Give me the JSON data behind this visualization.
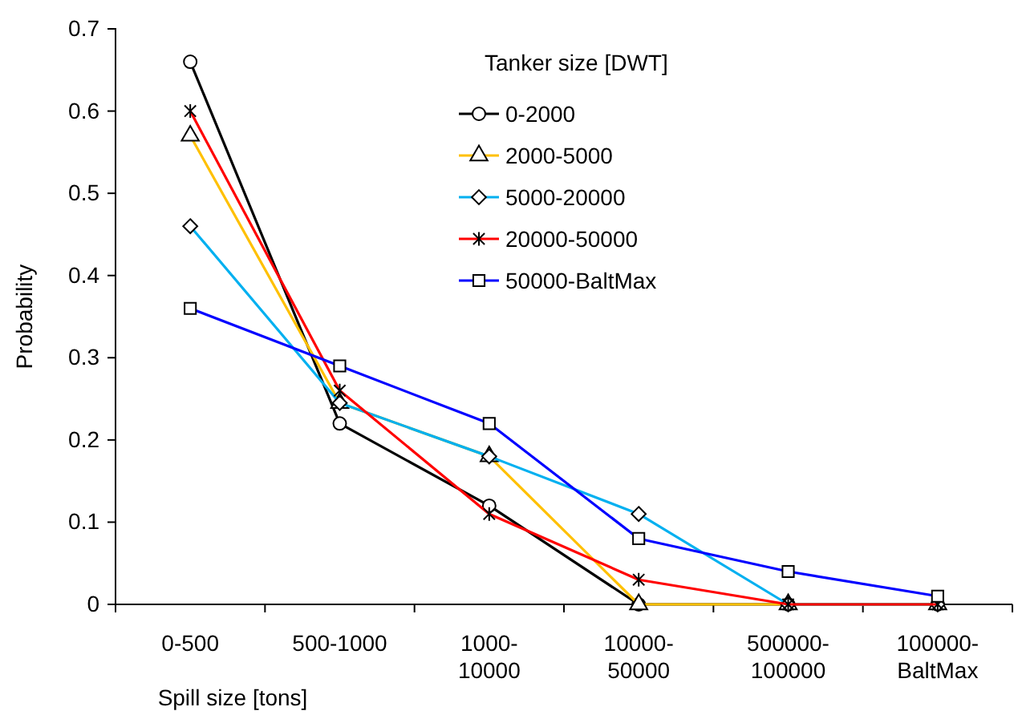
{
  "chart_data": {
    "type": "line",
    "xlabel": "Spill size [tons]",
    "ylabel": "Probability",
    "legend_title": "Tanker size [DWT]",
    "categories": [
      "0-500",
      "500-1000",
      "1000-10000",
      "10000-50000",
      "500000-100000",
      "100000-BaltMax"
    ],
    "series": [
      {
        "name": "0-2000",
        "color": "#000000",
        "marker": "circle",
        "values": [
          0.66,
          0.22,
          0.12,
          0,
          0,
          0
        ]
      },
      {
        "name": "2000-5000",
        "color": "#ffc000",
        "marker": "triangle",
        "values": [
          0.57,
          0.245,
          0.18,
          0,
          0,
          0
        ]
      },
      {
        "name": "5000-20000",
        "color": "#00b0f0",
        "marker": "diamond",
        "values": [
          0.46,
          0.245,
          0.18,
          0.11,
          0,
          0
        ]
      },
      {
        "name": "20000-50000",
        "color": "#ff0000",
        "marker": "cross",
        "values": [
          0.6,
          0.26,
          0.11,
          0.03,
          0,
          0
        ]
      },
      {
        "name": "50000-BaltMax",
        "color": "#0000ff",
        "marker": "square",
        "values": [
          0.36,
          0.29,
          0.22,
          0.08,
          0.04,
          0.01
        ]
      }
    ],
    "ylim": [
      0,
      0.7
    ],
    "yticks": [
      0,
      0.1,
      0.2,
      0.3,
      0.4,
      0.5,
      0.6,
      0.7
    ],
    "grid": false,
    "legend": "top right"
  }
}
